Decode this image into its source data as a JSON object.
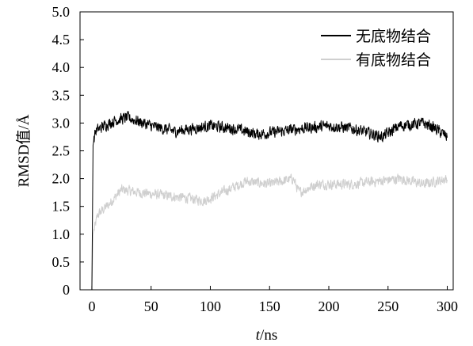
{
  "chart_data": {
    "type": "line",
    "xlabel_italic": "t",
    "xlabel_unit": "/ns",
    "ylabel": "RMSD值/Å",
    "xlim": [
      -10,
      305
    ],
    "ylim": [
      0,
      5.0
    ],
    "xticks": [
      0,
      50,
      100,
      150,
      200,
      250,
      300
    ],
    "yticks": [
      "0",
      "0.5",
      "1.0",
      "1.5",
      "2.0",
      "2.5",
      "3.0",
      "3.5",
      "4.0",
      "4.5",
      "5.0"
    ],
    "grid": false,
    "legend_position": "top-right",
    "series": [
      {
        "name": "无底物结合",
        "color": "#000000",
        "noise": 0.09,
        "points": [
          [
            0,
            0.0
          ],
          [
            1,
            2.6
          ],
          [
            3,
            2.85
          ],
          [
            10,
            2.95
          ],
          [
            20,
            3.05
          ],
          [
            30,
            3.1
          ],
          [
            50,
            2.95
          ],
          [
            70,
            2.85
          ],
          [
            100,
            2.95
          ],
          [
            120,
            2.9
          ],
          [
            140,
            2.8
          ],
          [
            160,
            2.85
          ],
          [
            175,
            2.9
          ],
          [
            200,
            2.95
          ],
          [
            220,
            2.9
          ],
          [
            245,
            2.75
          ],
          [
            260,
            2.95
          ],
          [
            280,
            3.0
          ],
          [
            290,
            2.9
          ],
          [
            300,
            2.75
          ]
        ]
      },
      {
        "name": "有底物结合",
        "color": "#cfcfcf",
        "noise": 0.08,
        "points": [
          [
            0,
            0.0
          ],
          [
            1,
            1.0
          ],
          [
            5,
            1.35
          ],
          [
            15,
            1.55
          ],
          [
            25,
            1.8
          ],
          [
            40,
            1.75
          ],
          [
            60,
            1.7
          ],
          [
            80,
            1.65
          ],
          [
            95,
            1.6
          ],
          [
            110,
            1.75
          ],
          [
            130,
            1.95
          ],
          [
            150,
            1.9
          ],
          [
            170,
            2.0
          ],
          [
            175,
            1.75
          ],
          [
            190,
            1.9
          ],
          [
            220,
            1.9
          ],
          [
            240,
            1.95
          ],
          [
            260,
            2.0
          ],
          [
            280,
            1.9
          ],
          [
            300,
            2.0
          ]
        ]
      }
    ]
  }
}
